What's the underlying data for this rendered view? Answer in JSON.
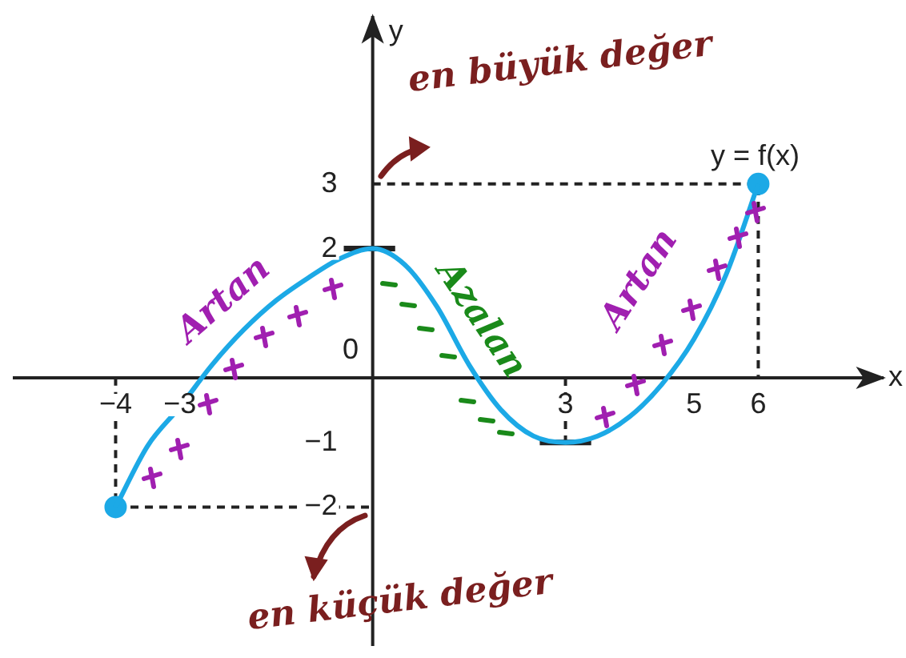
{
  "chart_data": {
    "type": "line",
    "xlabel": "x",
    "ylabel": "y",
    "xlim": [
      -5.6,
      7.95
    ],
    "ylim": [
      -4.15,
      5.6
    ],
    "xticks": [
      -4,
      -3,
      3,
      5,
      6
    ],
    "yticks": [
      -2,
      -1,
      2,
      3
    ],
    "grid": false,
    "legend": false,
    "annotations": [
      "en büyük değer",
      "en küçük değer",
      "Artan",
      "Azalan",
      "Artan",
      "0"
    ],
    "series": [
      {
        "type": "line",
        "name": "y = f(x)",
        "color": "#1ca9e6",
        "marker": "none",
        "line_style": "solid",
        "x": [
          -4,
          -3.5,
          -3,
          -2.5,
          -2,
          -1.5,
          -1,
          -0.5,
          0,
          0.5,
          1,
          1.5,
          2,
          2.5,
          3,
          3.5,
          4,
          4.5,
          5,
          5.5,
          6
        ],
        "values": [
          -2,
          -1.05,
          -0.45,
          0.2,
          0.75,
          1.2,
          1.55,
          1.85,
          2,
          1.75,
          1.1,
          0.2,
          -0.5,
          -0.9,
          -1,
          -0.9,
          -0.6,
          -0.1,
          0.6,
          1.6,
          3
        ]
      },
      {
        "type": "scatter",
        "color": "#1ca9e6",
        "marker": "circle",
        "x": [
          -4,
          6
        ],
        "values": [
          -2,
          3
        ]
      },
      {
        "type": "line",
        "color": "#222222",
        "marker": "none",
        "line_style": "dashed",
        "x": [
          -4,
          -4,
          0
        ],
        "values": [
          0,
          -2,
          -2
        ]
      },
      {
        "type": "line",
        "color": "#222222",
        "marker": "none",
        "line_style": "dashed",
        "x": [
          0,
          6,
          6
        ],
        "values": [
          3,
          3,
          0
        ]
      },
      {
        "type": "line",
        "color": "#222222",
        "marker": "none",
        "line_style": "dashed",
        "x": [
          3,
          3
        ],
        "values": [
          0,
          -1
        ]
      },
      {
        "type": "line",
        "color": "#222222",
        "line_style": "solid",
        "x": [
          -0.45,
          0.35
        ],
        "values": [
          2,
          2
        ]
      },
      {
        "type": "line",
        "color": "#222222",
        "line_style": "solid",
        "x": [
          2.6,
          3.4
        ],
        "values": [
          -1,
          -1
        ]
      }
    ]
  }
}
